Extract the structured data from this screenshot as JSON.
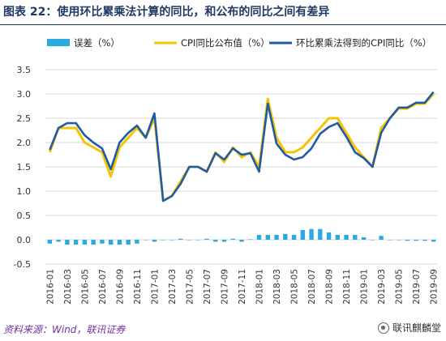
{
  "header": {
    "title": "图表 22：使用环比累乘法计算的同比，和公布的同比之间有差异"
  },
  "footer": {
    "source": "资料来源：Wind，联讯证券",
    "brand": "联讯麒麟堂"
  },
  "colors": {
    "error_bar": "#29abe2",
    "cpi_published": "#f5c400",
    "cpi_computed": "#1f5aa6",
    "title": "#1f3864",
    "source": "#7030a0"
  },
  "chart_data": {
    "type": "line",
    "x": [
      "2016-01",
      "2016-02",
      "2016-03",
      "2016-04",
      "2016-05",
      "2016-06",
      "2016-07",
      "2016-08",
      "2016-09",
      "2016-10",
      "2016-11",
      "2016-12",
      "2017-01",
      "2017-02",
      "2017-03",
      "2017-04",
      "2017-05",
      "2017-06",
      "2017-07",
      "2017-08",
      "2017-09",
      "2017-10",
      "2017-11",
      "2017-12",
      "2018-01",
      "2018-02",
      "2018-03",
      "2018-04",
      "2018-05",
      "2018-06",
      "2018-07",
      "2018-08",
      "2018-09",
      "2018-10",
      "2018-11",
      "2018-12",
      "2019-01",
      "2019-02",
      "2019-03",
      "2019-04",
      "2019-05",
      "2019-06",
      "2019-07",
      "2019-08",
      "2019-09"
    ],
    "xtick_labels": [
      "2016-01",
      "2016-03",
      "2016-05",
      "2016-07",
      "2016-09",
      "2016-11",
      "2017-01",
      "2017-03",
      "2017-05",
      "2017-07",
      "2017-09",
      "2017-11",
      "2018-01",
      "2018-03",
      "2018-05",
      "2018-07",
      "2018-09",
      "2018-11",
      "2019-01",
      "2019-03",
      "2019-05",
      "2019-07",
      "2019-09"
    ],
    "ylim": [
      -0.5,
      3.5
    ],
    "yticks": [
      "-0.5",
      "0.0",
      "0.5",
      "1.0",
      "1.5",
      "2.0",
      "2.5",
      "3.0",
      "3.5"
    ],
    "grid": true,
    "legend_position": "top",
    "series": [
      {
        "name": "误差（%）",
        "type": "bar",
        "color": "#29abe2",
        "values": [
          -0.08,
          -0.04,
          -0.1,
          -0.1,
          -0.1,
          -0.1,
          -0.08,
          -0.1,
          -0.1,
          -0.1,
          -0.08,
          0.0,
          -0.04,
          0.0,
          0.0,
          0.02,
          0.0,
          0.0,
          0.02,
          -0.04,
          -0.04,
          0.02,
          -0.04,
          0.01,
          0.1,
          0.1,
          0.1,
          0.12,
          0.1,
          0.2,
          0.22,
          0.22,
          0.15,
          0.1,
          0.1,
          0.1,
          0.05,
          0.0,
          0.08,
          0.0,
          0.0,
          -0.02,
          -0.02,
          -0.02,
          -0.04
        ]
      },
      {
        "name": "CPI同比公布值（%）",
        "type": "line",
        "color": "#f5c400",
        "values": [
          1.8,
          2.3,
          2.3,
          2.3,
          2.0,
          1.9,
          1.8,
          1.3,
          1.9,
          2.1,
          2.3,
          2.1,
          2.5,
          0.8,
          0.9,
          1.2,
          1.5,
          1.5,
          1.4,
          1.8,
          1.6,
          1.9,
          1.7,
          1.8,
          1.5,
          2.9,
          2.1,
          1.8,
          1.8,
          1.9,
          2.1,
          2.3,
          2.5,
          2.5,
          2.2,
          1.9,
          1.7,
          1.5,
          2.3,
          2.5,
          2.7,
          2.7,
          2.8,
          2.8,
          3.0
        ]
      },
      {
        "name": "环比累乘法得到的CPI同比（%）",
        "type": "line",
        "color": "#1f5aa6",
        "values": [
          1.85,
          2.3,
          2.4,
          2.4,
          2.15,
          2.0,
          1.88,
          1.45,
          2.0,
          2.2,
          2.35,
          2.1,
          2.6,
          0.8,
          0.9,
          1.15,
          1.5,
          1.5,
          1.4,
          1.78,
          1.65,
          1.88,
          1.75,
          1.78,
          1.4,
          2.8,
          1.98,
          1.75,
          1.65,
          1.7,
          1.88,
          2.18,
          2.32,
          2.4,
          2.12,
          1.8,
          1.68,
          1.5,
          2.2,
          2.5,
          2.72,
          2.72,
          2.82,
          2.82,
          3.04
        ]
      }
    ]
  }
}
